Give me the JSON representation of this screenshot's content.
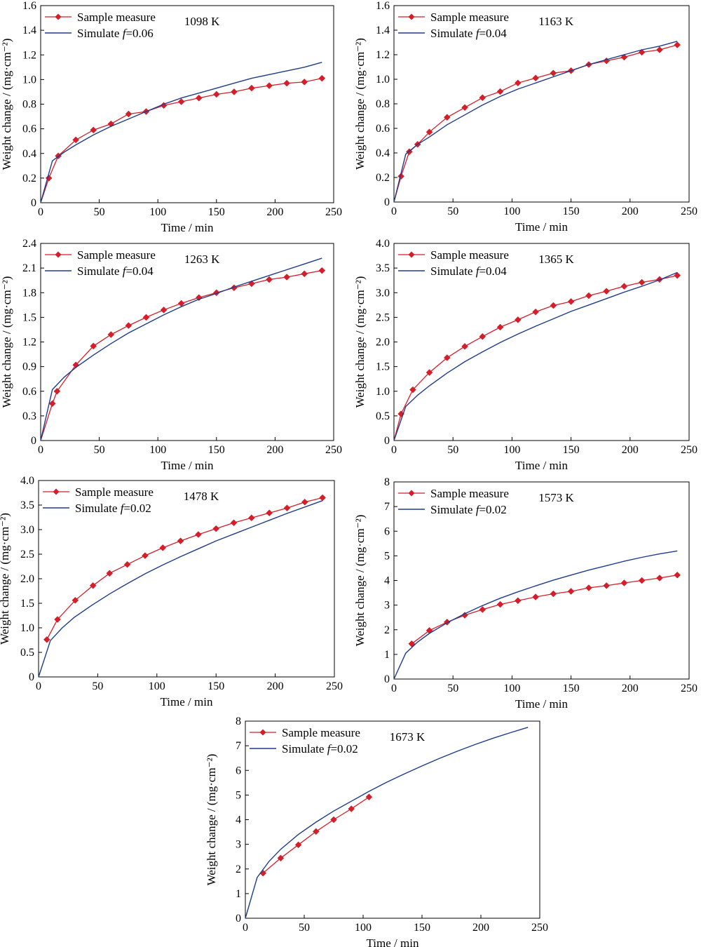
{
  "figure": {
    "xlabel": "Time / min",
    "ylabel": "Weight change / (mg·cm⁻²)",
    "legend_measure": "Sample measure",
    "legend_sim_prefix": "Simulate ",
    "legend_sim_var": "f",
    "measure_color": "#d41f2a",
    "sim_color": "#1f3c8c"
  },
  "chart_data": [
    {
      "type": "line",
      "annotation": "1098 K",
      "xlim": [
        0,
        250
      ],
      "ylim": [
        0,
        1.6
      ],
      "xticks": [
        "0",
        "50",
        "100",
        "150",
        "200",
        "250"
      ],
      "yticks": [
        "0",
        "0.2",
        "0.4",
        "0.6",
        "0.8",
        "1.0",
        "1.2",
        "1.4",
        "1.6"
      ],
      "legend_position": "top-left",
      "series": [
        {
          "name": "Sample measure",
          "kind": "measure",
          "x": [
            0,
            7,
            15,
            30,
            45,
            60,
            75,
            90,
            105,
            120,
            135,
            150,
            165,
            180,
            195,
            210,
            225,
            240
          ],
          "y": [
            0,
            0.2,
            0.38,
            0.51,
            0.59,
            0.64,
            0.72,
            0.74,
            0.79,
            0.82,
            0.85,
            0.88,
            0.9,
            0.93,
            0.95,
            0.97,
            0.98,
            1.01
          ]
        },
        {
          "name": "Simulate f=0.06",
          "kind": "simulate",
          "f": "=0.06",
          "x": [
            0,
            10,
            20,
            30,
            45,
            60,
            75,
            90,
            105,
            120,
            135,
            150,
            165,
            180,
            195,
            210,
            225,
            240
          ],
          "y": [
            0,
            0.34,
            0.41,
            0.47,
            0.55,
            0.62,
            0.68,
            0.74,
            0.8,
            0.85,
            0.89,
            0.93,
            0.97,
            1.01,
            1.04,
            1.07,
            1.1,
            1.14
          ]
        }
      ]
    },
    {
      "type": "line",
      "annotation": "1163 K",
      "xlim": [
        0,
        250
      ],
      "ylim": [
        0,
        1.6
      ],
      "xticks": [
        "0",
        "50",
        "100",
        "150",
        "200",
        "250"
      ],
      "yticks": [
        "0",
        "0.2",
        "0.4",
        "0.6",
        "0.8",
        "1.0",
        "1.2",
        "1.4",
        "1.6"
      ],
      "legend_position": "top-left",
      "series": [
        {
          "name": "Sample measure",
          "kind": "measure",
          "x": [
            0,
            6,
            13,
            20,
            30,
            45,
            60,
            75,
            90,
            105,
            120,
            135,
            150,
            165,
            180,
            195,
            210,
            225,
            240
          ],
          "y": [
            0,
            0.21,
            0.41,
            0.47,
            0.57,
            0.69,
            0.77,
            0.85,
            0.9,
            0.97,
            1.01,
            1.05,
            1.07,
            1.12,
            1.15,
            1.18,
            1.22,
            1.24,
            1.28
          ]
        },
        {
          "name": "Simulate f=0.04",
          "kind": "simulate",
          "f": "=0.04",
          "x": [
            0,
            10,
            20,
            30,
            45,
            60,
            75,
            90,
            105,
            120,
            135,
            150,
            165,
            180,
            195,
            210,
            225,
            240
          ],
          "y": [
            0,
            0.39,
            0.47,
            0.53,
            0.63,
            0.71,
            0.79,
            0.86,
            0.92,
            0.97,
            1.02,
            1.07,
            1.12,
            1.16,
            1.2,
            1.24,
            1.27,
            1.31
          ]
        }
      ]
    },
    {
      "type": "line",
      "annotation": "1263 K",
      "xlim": [
        0,
        250
      ],
      "ylim": [
        0,
        2.4
      ],
      "xticks": [
        "0",
        "50",
        "100",
        "150",
        "200",
        "250"
      ],
      "yticks": [
        "0",
        "0.3",
        "0.6",
        "0.9",
        "1.2",
        "1.5",
        "1.8",
        "2.1",
        "2.4"
      ],
      "legend_position": "top-left",
      "series": [
        {
          "name": "Sample measure",
          "kind": "measure",
          "x": [
            0,
            10,
            14,
            30,
            45,
            60,
            75,
            90,
            105,
            120,
            135,
            150,
            165,
            180,
            195,
            210,
            225,
            240
          ],
          "y": [
            0,
            0.45,
            0.6,
            0.92,
            1.15,
            1.29,
            1.4,
            1.5,
            1.59,
            1.67,
            1.74,
            1.8,
            1.86,
            1.91,
            1.96,
            1.99,
            2.03,
            2.07
          ]
        },
        {
          "name": "Simulate f=0.04",
          "kind": "simulate",
          "f": "=0.04",
          "x": [
            0,
            10,
            20,
            30,
            45,
            60,
            75,
            90,
            105,
            120,
            135,
            150,
            165,
            180,
            195,
            210,
            225,
            240
          ],
          "y": [
            0,
            0.62,
            0.77,
            0.89,
            1.04,
            1.18,
            1.31,
            1.42,
            1.53,
            1.63,
            1.72,
            1.79,
            1.87,
            1.94,
            2.01,
            2.08,
            2.15,
            2.22
          ]
        }
      ]
    },
    {
      "type": "line",
      "annotation": "1365 K",
      "xlim": [
        0,
        250
      ],
      "ylim": [
        0,
        4.0
      ],
      "xticks": [
        "0",
        "50",
        "100",
        "150",
        "200",
        "250"
      ],
      "yticks": [
        "0",
        "0.5",
        "1.0",
        "1.5",
        "2.0",
        "2.5",
        "3.0",
        "3.5",
        "4.0"
      ],
      "legend_position": "top-left",
      "series": [
        {
          "name": "Sample measure",
          "kind": "measure",
          "x": [
            0,
            6,
            16,
            30,
            45,
            60,
            75,
            90,
            105,
            120,
            135,
            150,
            165,
            180,
            195,
            210,
            225,
            240
          ],
          "y": [
            0,
            0.54,
            1.03,
            1.38,
            1.68,
            1.91,
            2.11,
            2.3,
            2.45,
            2.61,
            2.74,
            2.82,
            2.94,
            3.03,
            3.13,
            3.21,
            3.27,
            3.35
          ]
        },
        {
          "name": "Simulate f=0.04",
          "kind": "simulate",
          "f": "=0.04",
          "x": [
            0,
            10,
            20,
            30,
            45,
            60,
            75,
            90,
            105,
            120,
            135,
            150,
            165,
            180,
            195,
            210,
            225,
            240
          ],
          "y": [
            0,
            0.69,
            0.92,
            1.11,
            1.37,
            1.6,
            1.8,
            1.99,
            2.16,
            2.32,
            2.47,
            2.62,
            2.75,
            2.88,
            3.01,
            3.13,
            3.26,
            3.41
          ]
        }
      ]
    },
    {
      "type": "line",
      "annotation": "1478 K",
      "xlim": [
        0,
        250
      ],
      "ylim": [
        0,
        4.0
      ],
      "xticks": [
        "0",
        "50",
        "100",
        "150",
        "200",
        "250"
      ],
      "yticks": [
        "0",
        "0.5",
        "1.0",
        "1.5",
        "2.0",
        "2.5",
        "3.0",
        "3.5",
        "4.0"
      ],
      "legend_position": "top-left",
      "series": [
        {
          "name": "Sample measure",
          "kind": "measure",
          "x": [
            7,
            16,
            31,
            46,
            60,
            75,
            90,
            105,
            120,
            135,
            150,
            165,
            180,
            195,
            210,
            225,
            240
          ],
          "y": [
            0.76,
            1.17,
            1.56,
            1.86,
            2.11,
            2.29,
            2.47,
            2.63,
            2.77,
            2.9,
            3.02,
            3.14,
            3.24,
            3.34,
            3.44,
            3.56,
            3.65
          ]
        },
        {
          "name": "Simulate f=0.02",
          "kind": "simulate",
          "f": "=0.02",
          "x": [
            0,
            10,
            20,
            30,
            45,
            60,
            75,
            90,
            105,
            120,
            135,
            150,
            165,
            180,
            195,
            210,
            225,
            240
          ],
          "y": [
            0,
            0.74,
            1.0,
            1.21,
            1.46,
            1.69,
            1.9,
            2.1,
            2.28,
            2.45,
            2.61,
            2.77,
            2.91,
            3.05,
            3.19,
            3.33,
            3.46,
            3.59
          ]
        }
      ]
    },
    {
      "type": "line",
      "annotation": "1573 K",
      "xlim": [
        0,
        250
      ],
      "ylim": [
        0,
        8
      ],
      "xticks": [
        "0",
        "50",
        "100",
        "150",
        "200",
        "250"
      ],
      "yticks": [
        "0",
        "1",
        "2",
        "3",
        "4",
        "5",
        "6",
        "7",
        "8"
      ],
      "legend_position": "top-left",
      "series": [
        {
          "name": "Sample measure",
          "kind": "measure",
          "x": [
            15,
            30,
            45,
            60,
            75,
            90,
            105,
            120,
            135,
            150,
            165,
            180,
            195,
            210,
            225,
            240
          ],
          "y": [
            1.43,
            1.97,
            2.31,
            2.59,
            2.82,
            3.03,
            3.18,
            3.33,
            3.46,
            3.56,
            3.7,
            3.79,
            3.9,
            4.0,
            4.1,
            4.22
          ]
        },
        {
          "name": "Simulate f=0.02",
          "kind": "simulate",
          "f": "=0.02",
          "x": [
            0,
            10,
            20,
            30,
            45,
            60,
            75,
            90,
            105,
            120,
            135,
            150,
            165,
            180,
            195,
            210,
            225,
            240
          ],
          "y": [
            0,
            1.05,
            1.5,
            1.85,
            2.28,
            2.65,
            2.98,
            3.28,
            3.54,
            3.78,
            4.01,
            4.22,
            4.42,
            4.6,
            4.78,
            4.94,
            5.08,
            5.2
          ]
        }
      ]
    },
    {
      "type": "line",
      "annotation": "1673 K",
      "xlim": [
        0,
        250
      ],
      "ylim": [
        0,
        8
      ],
      "xticks": [
        "0",
        "50",
        "100",
        "150",
        "200",
        "250"
      ],
      "yticks": [
        "0",
        "1",
        "2",
        "3",
        "4",
        "5",
        "6",
        "7",
        "8"
      ],
      "legend_position": "top-left",
      "series": [
        {
          "name": "Sample measure",
          "kind": "measure",
          "x": [
            15,
            30,
            45,
            60,
            75,
            90,
            105
          ],
          "y": [
            1.83,
            2.44,
            2.98,
            3.52,
            4.0,
            4.44,
            4.92
          ]
        },
        {
          "name": "Simulate f=0.02",
          "kind": "simulate",
          "f": "=0.02",
          "x": [
            0,
            10,
            20,
            30,
            45,
            60,
            75,
            90,
            105,
            120,
            135,
            150,
            165,
            180,
            195,
            210,
            225,
            240
          ],
          "y": [
            0,
            1.65,
            2.3,
            2.8,
            3.4,
            3.9,
            4.35,
            4.75,
            5.15,
            5.52,
            5.86,
            6.18,
            6.49,
            6.78,
            7.05,
            7.3,
            7.53,
            7.75
          ]
        }
      ]
    }
  ]
}
